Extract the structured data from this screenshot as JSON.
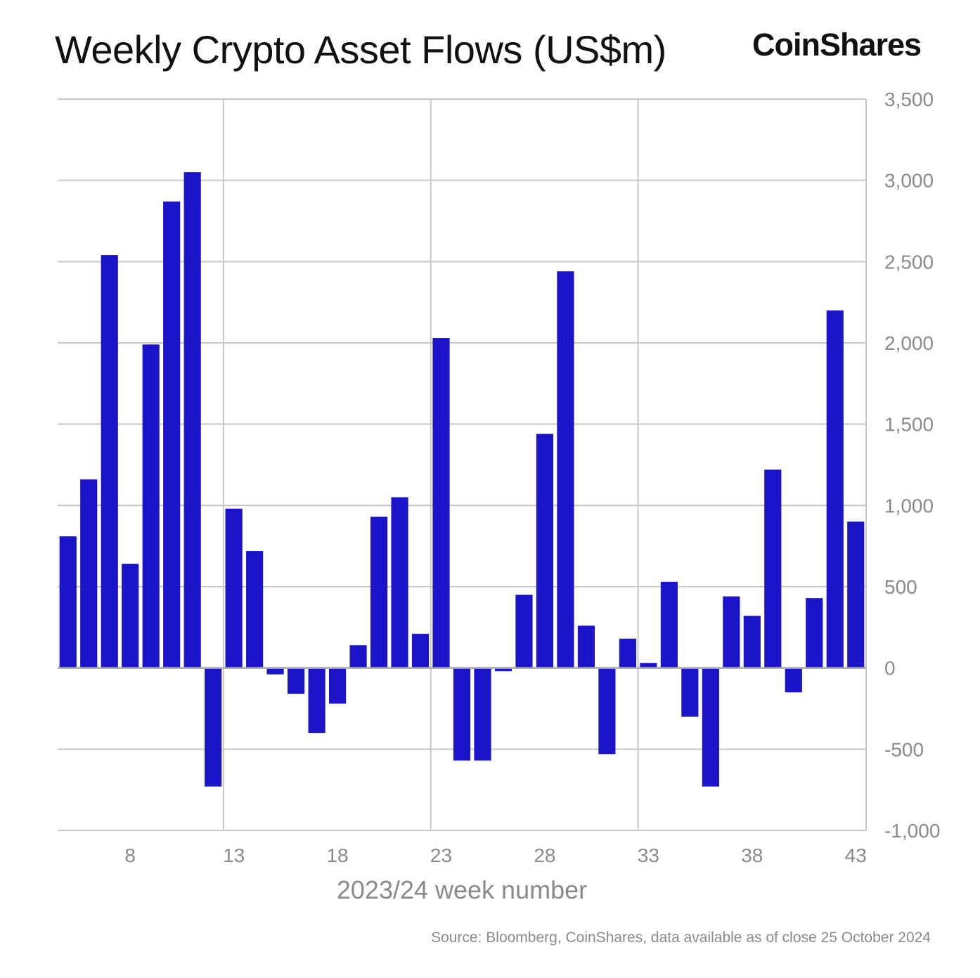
{
  "header": {
    "title": "Weekly Crypto Asset Flows (US$m)",
    "brand": "CoinShares"
  },
  "footer": {
    "source": "Source: Bloomberg, CoinShares, data available as of close 25 October 2024"
  },
  "colors": {
    "bar": "#1c14c8",
    "grid": "#c8c8c8",
    "tick_text": "#8a8a8a",
    "title_text": "#111111"
  },
  "chart_data": {
    "type": "bar",
    "title": "Weekly Crypto Asset Flows (US$m)",
    "xlabel": "2023/24 week number",
    "ylabel": "",
    "ylim": [
      -1000,
      3500
    ],
    "yticks": [
      3500,
      3000,
      2500,
      2000,
      1500,
      1000,
      500,
      0,
      -500,
      -1000
    ],
    "ytick_labels": [
      "3,500",
      "3,000",
      "2,500",
      "2,000",
      "1,500",
      "1,000",
      "500",
      "0",
      "-500",
      "-1,000"
    ],
    "xtick_labels": [
      "8",
      "13",
      "18",
      "23",
      "28",
      "33",
      "38",
      "43"
    ],
    "xtick_weeks": [
      8,
      13,
      18,
      23,
      28,
      33,
      38,
      43
    ],
    "y_axis_position": "right",
    "grid": true,
    "categories": [
      5,
      6,
      7,
      8,
      9,
      10,
      11,
      12,
      13,
      14,
      15,
      16,
      17,
      18,
      19,
      20,
      21,
      22,
      23,
      24,
      25,
      26,
      27,
      28,
      29,
      30,
      31,
      32,
      33,
      34,
      35,
      36,
      37,
      38,
      39,
      40,
      41,
      42,
      43
    ],
    "values": [
      810,
      1160,
      2540,
      640,
      1990,
      2870,
      3050,
      -730,
      980,
      720,
      -40,
      -160,
      -400,
      -220,
      140,
      930,
      1050,
      210,
      2030,
      -570,
      -570,
      -20,
      450,
      1440,
      2440,
      260,
      -530,
      180,
      30,
      530,
      -300,
      -730,
      440,
      320,
      1220,
      -150,
      430,
      2200,
      900
    ]
  }
}
